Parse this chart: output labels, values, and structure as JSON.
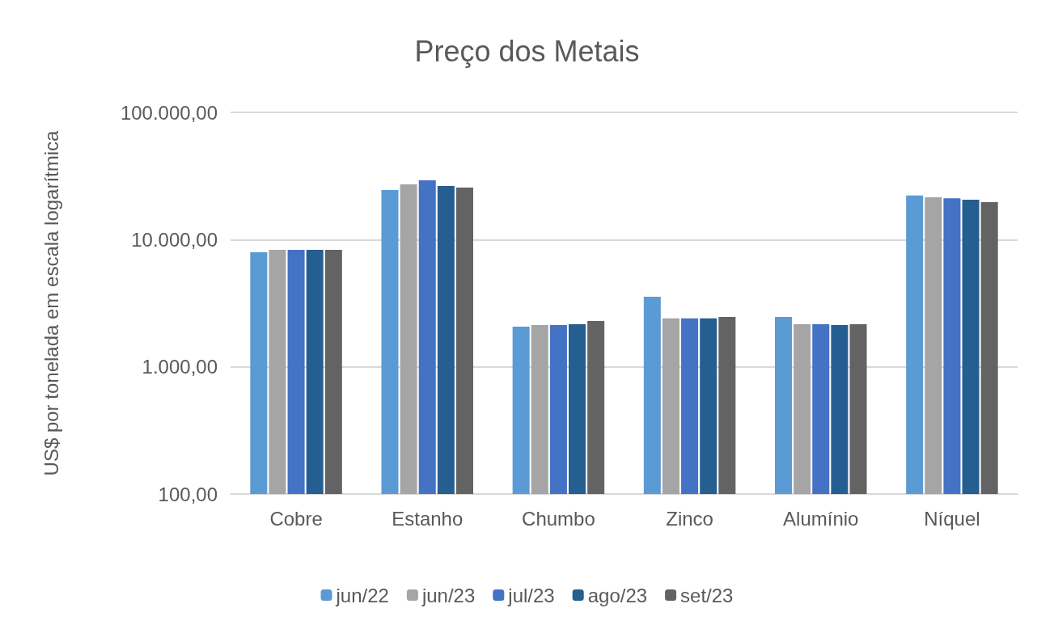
{
  "chart_data": {
    "type": "bar",
    "title": "Preço dos Metais",
    "ylabel": "US$ por tonelada em escala logarítmica",
    "categories": [
      "Cobre",
      "Estanho",
      "Chumbo",
      "Zinco",
      "Alumínio",
      "Níquel"
    ],
    "series": [
      {
        "name": "jun/22",
        "color": "#5b9bd5",
        "values": [
          7950,
          24500,
          2070,
          3560,
          2470,
          22200
        ]
      },
      {
        "name": "jun/23",
        "color": "#a5a5a5",
        "values": [
          8300,
          27200,
          2130,
          2400,
          2160,
          21500
        ]
      },
      {
        "name": "jul/23",
        "color": "#4472c4",
        "values": [
          8300,
          29300,
          2130,
          2400,
          2160,
          21100
        ]
      },
      {
        "name": "ago/23",
        "color": "#255e91",
        "values": [
          8300,
          26400,
          2160,
          2400,
          2130,
          20600
        ]
      },
      {
        "name": "set/23",
        "color": "#636363",
        "values": [
          8300,
          25600,
          2290,
          2470,
          2160,
          19700
        ]
      }
    ],
    "log": true,
    "ylim": [
      100,
      100000
    ],
    "yticks": [
      {
        "value": 100,
        "label": "100,00"
      },
      {
        "value": 1000,
        "label": "1.000,00"
      },
      {
        "value": 10000,
        "label": "10.000,00"
      },
      {
        "value": 100000,
        "label": "100.000,00"
      }
    ],
    "grid": "y",
    "legend": "bottom"
  }
}
